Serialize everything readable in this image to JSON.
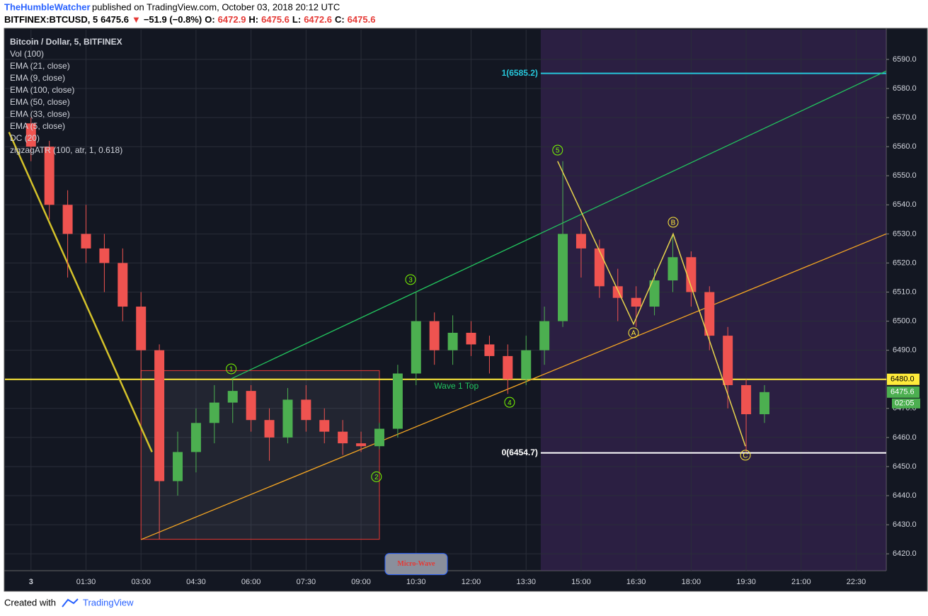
{
  "header": {
    "author": "TheHumbleWatcher",
    "published": "published on TradingView.com, October 03, 2018 20:12 UTC",
    "quote": [
      {
        "text": "BITFINEX:BTCUSD, 5",
        "color": "#000000"
      },
      {
        "text": "6475.6",
        "color": "#000000"
      },
      {
        "text": "▼",
        "color": "#e53935"
      },
      {
        "text": "−51.9 (−0.8%)",
        "color": "#000000"
      },
      {
        "text": "O:",
        "color": "#000000"
      },
      {
        "text": "6472.9",
        "color": "#e53935"
      },
      {
        "text": "H:",
        "color": "#000000"
      },
      {
        "text": "6475.6",
        "color": "#e53935"
      },
      {
        "text": "L:",
        "color": "#000000"
      },
      {
        "text": "6472.6",
        "color": "#e53935"
      },
      {
        "text": "C:",
        "color": "#000000"
      },
      {
        "text": "6475.6",
        "color": "#e53935"
      }
    ]
  },
  "legend": [
    "Bitcoin / Dollar, 5, BITFINEX",
    "Vol (100)",
    "EMA (21, close)",
    "EMA (9, close)",
    "EMA (100, close)",
    "EMA (50, close)",
    "EMA (33, close)",
    "EMA (5, close)",
    "DC (20)",
    "zigzagATR (100, atr, 1, 0.618)"
  ],
  "chart_data": {
    "type": "candlestick",
    "x": [
      0,
      0.5,
      1,
      1.5,
      2,
      2.5,
      3,
      3.5,
      4,
      4.5,
      5,
      5.5,
      6,
      6.5,
      7,
      7.5,
      8,
      8.5,
      9,
      9.5,
      10,
      10.5,
      11,
      11.5,
      12,
      12.5,
      13,
      13.5,
      14,
      14.5,
      15,
      15.5,
      16,
      16.5,
      17,
      17.5,
      18,
      18.5,
      19,
      19.5,
      20
    ],
    "open": [
      6568,
      6560,
      6540,
      6530,
      6525,
      6520,
      6505,
      6490,
      6445,
      6455,
      6465,
      6472,
      6476,
      6466,
      6460,
      6473,
      6466,
      6462,
      6458,
      6457,
      6463,
      6482,
      6500,
      6490,
      6496,
      6492,
      6488,
      6480,
      6490,
      6500,
      6530,
      6525,
      6512,
      6508,
      6505,
      6514,
      6522,
      6510,
      6495,
      6478,
      6468
    ],
    "high": [
      6570,
      6562,
      6545,
      6540,
      6530,
      6525,
      6510,
      6492,
      6462,
      6470,
      6478,
      6480,
      6478,
      6470,
      6477,
      6478,
      6470,
      6466,
      6462,
      6465,
      6485,
      6510,
      6503,
      6502,
      6500,
      6495,
      6492,
      6495,
      6505,
      6555,
      6535,
      6528,
      6518,
      6512,
      6518,
      6530,
      6524,
      6512,
      6498,
      6480,
      6478
    ],
    "low": [
      6555,
      6535,
      6515,
      6520,
      6510,
      6500,
      6480,
      6425,
      6440,
      6448,
      6458,
      6465,
      6462,
      6452,
      6458,
      6462,
      6458,
      6454,
      6455,
      6456,
      6460,
      6478,
      6485,
      6485,
      6488,
      6482,
      6475,
      6478,
      6485,
      6498,
      6515,
      6508,
      6500,
      6498,
      6502,
      6510,
      6505,
      6490,
      6470,
      6455,
      6465
    ],
    "close": [
      6560,
      6540,
      6530,
      6525,
      6520,
      6505,
      6490,
      6445,
      6455,
      6465,
      6472,
      6476,
      6466,
      6460,
      6473,
      6466,
      6462,
      6458,
      6457,
      6463,
      6482,
      6500,
      6490,
      6496,
      6492,
      6488,
      6480,
      6490,
      6500,
      6530,
      6525,
      6512,
      6508,
      6505,
      6514,
      6522,
      6510,
      6495,
      6478,
      6468,
      6475.6
    ],
    "up_color": "#4caf50",
    "down_color": "#ef5350",
    "xlim": [
      -0.71,
      23.32
    ],
    "xticks": [
      {
        "value": 0,
        "label": "3"
      },
      {
        "value": 1.5,
        "label": "01:30"
      },
      {
        "value": 3,
        "label": "03:00"
      },
      {
        "value": 4.5,
        "label": "04:30"
      },
      {
        "value": 6,
        "label": "06:00"
      },
      {
        "value": 7.5,
        "label": "07:30"
      },
      {
        "value": 9,
        "label": "09:00"
      },
      {
        "value": 10.5,
        "label": "10:30"
      },
      {
        "value": 12,
        "label": "12:00"
      },
      {
        "value": 13.5,
        "label": "13:30"
      },
      {
        "value": 15,
        "label": "15:00"
      },
      {
        "value": 16.5,
        "label": "16:30"
      },
      {
        "value": 18,
        "label": "18:00"
      },
      {
        "value": 19.5,
        "label": "19:30"
      },
      {
        "value": 21,
        "label": "21:00"
      },
      {
        "value": 22.5,
        "label": "22:30"
      }
    ],
    "ylim": [
      6414.2,
      6600.2
    ],
    "yticks": [
      {
        "value": 6420,
        "label": "6420.0"
      },
      {
        "value": 6430,
        "label": "6430.0"
      },
      {
        "value": 6440,
        "label": "6440.0"
      },
      {
        "value": 6450,
        "label": "6450.0"
      },
      {
        "value": 6460,
        "label": "6460.0"
      },
      {
        "value": 6470,
        "label": "6470.0"
      },
      {
        "value": 6480,
        "label": "6480.0"
      },
      {
        "value": 6490,
        "label": "6490.0"
      },
      {
        "value": 6500,
        "label": "6500.0"
      },
      {
        "value": 6510,
        "label": "6510.0"
      },
      {
        "value": 6520,
        "label": "6520.0"
      },
      {
        "value": 6530,
        "label": "6530.0"
      },
      {
        "value": 6540,
        "label": "6540.0"
      },
      {
        "value": 6550,
        "label": "6550.0"
      },
      {
        "value": 6560,
        "label": "6560.0"
      },
      {
        "value": 6570,
        "label": "6570.0"
      },
      {
        "value": 6580,
        "label": "6580.0"
      },
      {
        "value": 6590,
        "label": "6590.0"
      }
    ],
    "grid": true,
    "levels": [
      {
        "value": 6585.2,
        "label": "1(6585.2)",
        "color": "#26c6da",
        "from": 13.9
      },
      {
        "value": 6454.7,
        "label": "0(6454.7)",
        "color": "#ffffff",
        "from": 13.9
      },
      {
        "value": 6480,
        "color": "#ffeb3b",
        "from": -0.71
      }
    ],
    "price_tags": [
      {
        "value": 6480,
        "label": "6480.0",
        "color": "#ffeb3b"
      },
      {
        "value": 6475.6,
        "label": "6475.6",
        "color": "#4caf50"
      }
    ],
    "countdown": "02:05",
    "trend_lines": [
      {
        "color": "#22c55e",
        "points": [
          [
            5.46,
            6480.2
          ],
          [
            23.32,
            6586
          ]
        ]
      },
      {
        "color": "#f5a623",
        "points": [
          [
            3,
            6424.9
          ],
          [
            23.32,
            6530
          ]
        ]
      },
      {
        "color": "#d4c22a",
        "points": [
          [
            -0.6,
            6565
          ],
          [
            3.3,
            6455
          ]
        ]
      }
    ],
    "zigzag": {
      "color": "#e8d44d",
      "x": [
        14.36,
        16.43,
        17.51,
        19.48
      ],
      "y": [
        6555,
        6499,
        6530,
        6457
      ]
    },
    "waves": [
      {
        "label": "1",
        "x": 5.46,
        "y": 6483.6,
        "color": "#7cfc00"
      },
      {
        "label": "2",
        "x": 9.42,
        "y": 6446.5,
        "color": "#7cfc00"
      },
      {
        "label": "3",
        "x": 10.35,
        "y": 6514.3,
        "color": "#7cfc00"
      },
      {
        "label": "4",
        "x": 13.05,
        "y": 6472.1,
        "color": "#7cfc00"
      },
      {
        "label": "5",
        "x": 14.36,
        "y": 6558.8,
        "color": "#7cfc00"
      },
      {
        "label": "A",
        "x": 16.43,
        "y": 6496,
        "color": "#ffeb3b"
      },
      {
        "label": "B",
        "x": 17.51,
        "y": 6534,
        "color": "#ffeb3b"
      },
      {
        "label": "C",
        "x": 19.48,
        "y": 6453.9,
        "color": "#ffeb3b"
      }
    ],
    "box": {
      "x": [
        3,
        9.5
      ],
      "y": [
        6425,
        6483
      ],
      "label": "Micro-Wave",
      "color": "#e53935"
    },
    "wave_note": {
      "text": "Wave 1 Top",
      "x": 11.6,
      "y": 6477.5
    },
    "shade": {
      "x": [
        13.9,
        23.32
      ],
      "color": "#4a2a6a"
    }
  },
  "footer": {
    "created": "Created with",
    "brand": "TradingView"
  }
}
